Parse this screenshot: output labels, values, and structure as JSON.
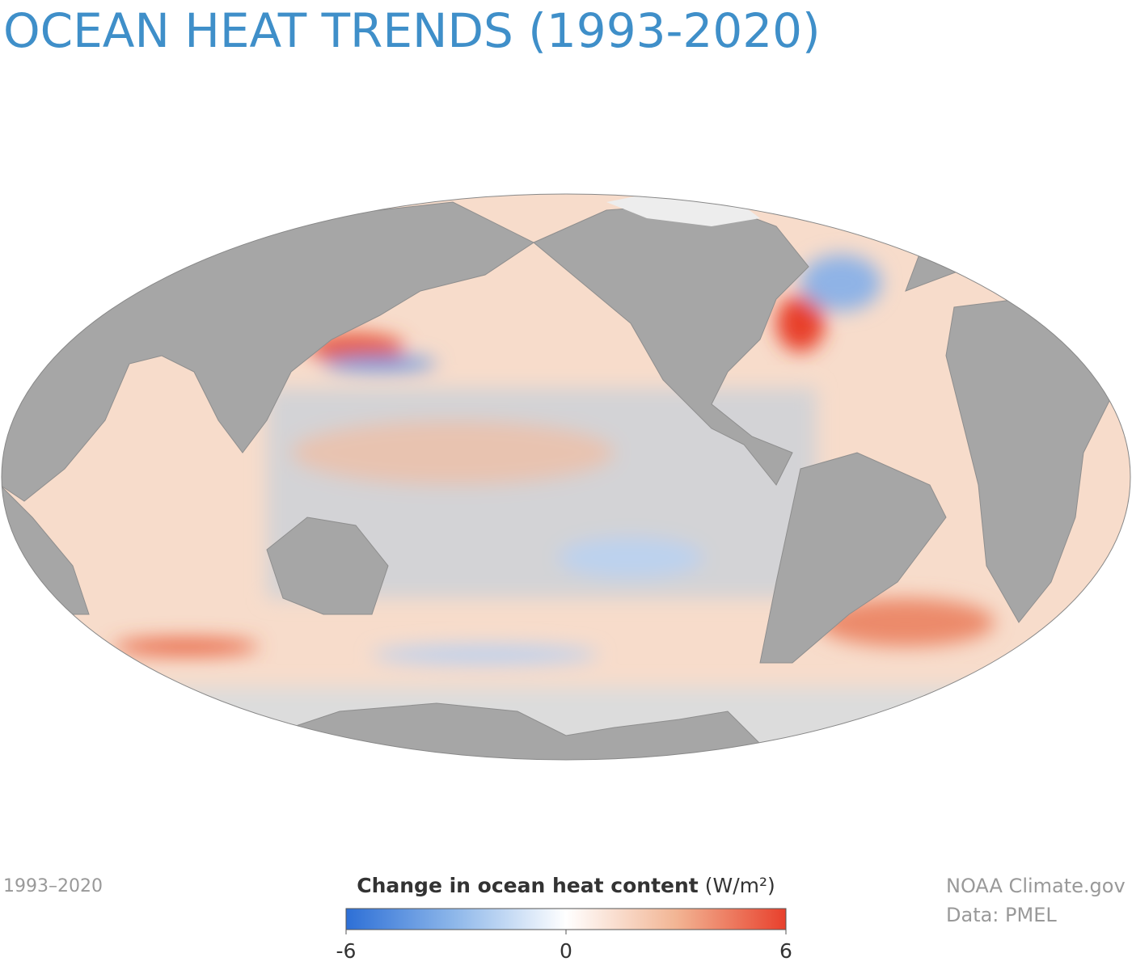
{
  "header": {
    "title": "OCEAN HEAT TRENDS (1993-2020)"
  },
  "footer": {
    "period": "1993–2020",
    "credit": "NOAA Climate.gov",
    "source": "Data: PMEL"
  },
  "legend": {
    "title": "Change in ocean heat content",
    "unit": "(W/m²)",
    "lim": [
      -6,
      6
    ],
    "ticks": [
      -6,
      0,
      6
    ],
    "colors": [
      "#2d6fd6",
      "#8fb8ea",
      "#ffffff",
      "#f2b594",
      "#e8402c"
    ]
  }
}
